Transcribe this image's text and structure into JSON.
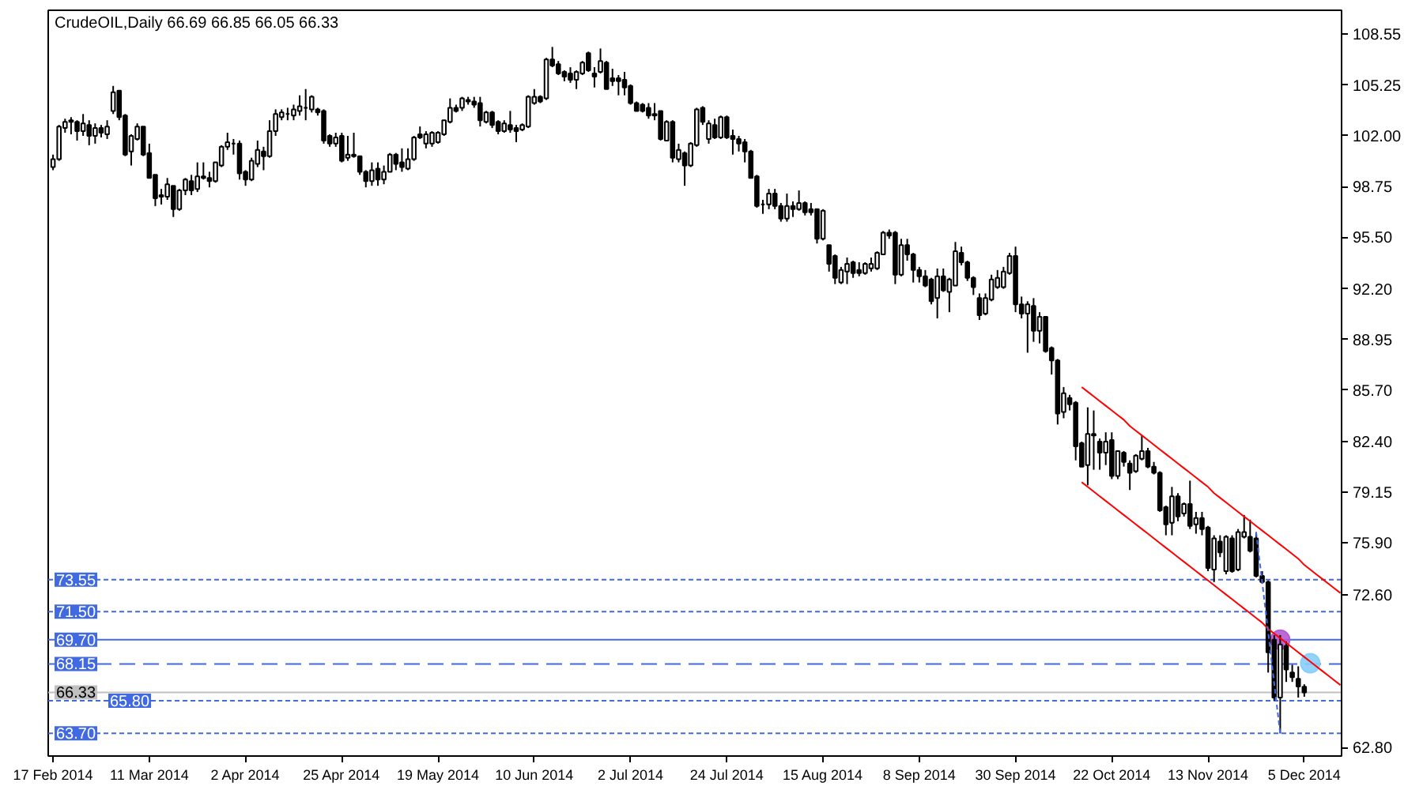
{
  "chart_data": {
    "type": "candlestick",
    "title": "CrudeOIL,Daily  66.69 66.85 66.05 66.33",
    "color": "#000000",
    "categories": [
      "17 Feb 2014",
      null,
      null,
      null,
      null,
      null,
      null,
      null,
      null,
      null,
      null,
      null,
      null,
      null,
      null,
      null,
      "11 Mar 2014",
      null,
      null,
      null,
      null,
      null,
      null,
      null,
      null,
      null,
      null,
      null,
      null,
      null,
      null,
      null,
      "2 Apr 2014",
      null,
      null,
      null,
      null,
      null,
      null,
      null,
      null,
      null,
      null,
      null,
      null,
      null,
      null,
      null,
      "25 Apr 2014",
      null,
      null,
      null,
      null,
      null,
      null,
      null,
      null,
      null,
      null,
      null,
      null,
      null,
      null,
      null,
      "19 May 2014",
      null,
      null,
      null,
      null,
      null,
      null,
      null,
      null,
      null,
      null,
      null,
      null,
      null,
      null,
      null,
      "10 Jun 2014",
      null,
      null,
      null,
      null,
      null,
      null,
      null,
      null,
      null,
      null,
      null,
      null,
      null,
      null,
      null,
      "2 Jul 2014",
      null,
      null,
      null,
      null,
      null,
      null,
      null,
      null,
      null,
      null,
      null,
      null,
      null,
      null,
      null,
      "24 Jul 2014",
      null,
      null,
      null,
      null,
      null,
      null,
      null,
      null,
      null,
      null,
      null,
      null,
      null,
      null,
      null,
      "15 Aug 2014",
      null,
      null,
      null,
      null,
      null,
      null,
      null,
      null,
      null,
      null,
      null,
      null,
      null,
      null,
      null,
      "8 Sep 2014",
      null,
      null,
      null,
      null,
      null,
      null,
      null,
      null,
      null,
      null,
      null,
      null,
      null,
      null,
      null,
      "30 Sep 2014",
      null,
      null,
      null,
      null,
      null,
      null,
      null,
      null,
      null,
      null,
      null,
      null,
      null,
      null,
      null,
      "22 Oct 2014",
      null,
      null,
      null,
      null,
      null,
      null,
      null,
      null,
      null,
      null,
      null,
      null,
      null,
      null,
      null,
      "13 Nov 2014",
      null,
      null,
      null,
      null,
      null,
      null,
      null,
      null,
      null,
      null,
      null,
      null,
      null,
      null,
      null,
      "5 Dec 2014",
      null,
      null,
      null,
      null,
      null,
      null
    ],
    "ohlc": [
      [
        100.0,
        100.8,
        99.8,
        100.5
      ],
      [
        100.5,
        102.7,
        100.4,
        102.6
      ],
      [
        102.5,
        103.1,
        102.2,
        102.9
      ],
      [
        102.9,
        103.2,
        102.1,
        103.0
      ],
      [
        102.9,
        103.0,
        101.7,
        102.3
      ],
      [
        102.3,
        103.4,
        102.0,
        102.8
      ],
      [
        102.7,
        103.0,
        101.4,
        102.0
      ],
      [
        102.0,
        102.8,
        101.5,
        102.5
      ],
      [
        102.5,
        102.7,
        101.9,
        102.2
      ],
      [
        102.1,
        103.0,
        101.8,
        102.6
      ],
      [
        103.6,
        105.2,
        103.4,
        104.8
      ],
      [
        104.9,
        104.9,
        103.0,
        103.2
      ],
      [
        103.3,
        103.4,
        100.7,
        100.8
      ],
      [
        101.0,
        102.1,
        100.1,
        102.0
      ],
      [
        101.8,
        102.8,
        101.7,
        102.6
      ],
      [
        102.6,
        102.6,
        100.7,
        100.8
      ],
      [
        100.9,
        101.5,
        99.3,
        99.3
      ],
      [
        99.5,
        99.5,
        97.5,
        98.0
      ],
      [
        98.2,
        98.6,
        97.6,
        98.1
      ],
      [
        98.1,
        99.3,
        97.9,
        98.9
      ],
      [
        98.8,
        98.8,
        96.8,
        97.3
      ],
      [
        97.3,
        98.6,
        97.2,
        98.5
      ],
      [
        98.5,
        99.3,
        98.2,
        99.2
      ],
      [
        99.1,
        99.5,
        98.2,
        98.5
      ],
      [
        98.6,
        100.3,
        98.4,
        99.4
      ],
      [
        99.4,
        100.3,
        99.2,
        99.3
      ],
      [
        99.3,
        99.7,
        98.7,
        99.1
      ],
      [
        99.1,
        100.3,
        99.0,
        100.3
      ],
      [
        100.1,
        101.4,
        100.0,
        101.3
      ],
      [
        101.3,
        102.2,
        101.1,
        101.6
      ],
      [
        101.5,
        101.8,
        100.8,
        101.5
      ],
      [
        101.5,
        101.7,
        99.2,
        99.6
      ],
      [
        99.7,
        99.8,
        98.8,
        99.2
      ],
      [
        99.2,
        100.6,
        99.1,
        100.4
      ],
      [
        100.2,
        101.7,
        100.0,
        101.1
      ],
      [
        101.0,
        101.3,
        99.8,
        100.7
      ],
      [
        100.7,
        103.0,
        100.6,
        102.3
      ],
      [
        102.3,
        103.7,
        102.0,
        103.4
      ],
      [
        103.2,
        103.7,
        103.0,
        103.5
      ],
      [
        103.4,
        103.8,
        103.0,
        103.4
      ],
      [
        103.3,
        104.0,
        103.0,
        103.7
      ],
      [
        103.6,
        104.6,
        103.3,
        103.9
      ],
      [
        103.8,
        105.0,
        103.0,
        103.8
      ],
      [
        103.7,
        104.6,
        103.5,
        104.5
      ],
      [
        103.7,
        103.8,
        103.3,
        103.5
      ],
      [
        103.6,
        103.7,
        101.5,
        101.7
      ],
      [
        102.0,
        102.1,
        101.3,
        101.5
      ],
      [
        101.5,
        102.2,
        101.3,
        101.9
      ],
      [
        102.0,
        102.2,
        100.3,
        100.4
      ],
      [
        100.6,
        102.0,
        100.4,
        100.8
      ],
      [
        100.8,
        102.2,
        100.6,
        100.7
      ],
      [
        100.7,
        100.7,
        99.5,
        99.7
      ],
      [
        99.7,
        99.8,
        98.7,
        99.1
      ],
      [
        99.1,
        100.3,
        98.8,
        99.8
      ],
      [
        99.9,
        100.3,
        98.8,
        99.2
      ],
      [
        99.2,
        100.1,
        98.9,
        99.7
      ],
      [
        99.7,
        100.9,
        99.7,
        100.8
      ],
      [
        100.8,
        100.9,
        99.8,
        100.2
      ],
      [
        100.3,
        101.2,
        99.7,
        100.0
      ],
      [
        99.9,
        101.2,
        99.8,
        100.5
      ],
      [
        100.5,
        102.0,
        100.4,
        101.9
      ],
      [
        102.1,
        102.6,
        101.8,
        101.9
      ],
      [
        101.5,
        102.3,
        101.2,
        102.1
      ],
      [
        101.5,
        102.3,
        101.3,
        102.2
      ],
      [
        101.6,
        102.3,
        101.5,
        102.2
      ],
      [
        102.1,
        103.0,
        102.0,
        103.0
      ],
      [
        102.9,
        104.4,
        102.8,
        103.8
      ],
      [
        103.8,
        104.0,
        103.5,
        103.6
      ],
      [
        103.8,
        104.5,
        103.6,
        104.4
      ],
      [
        104.3,
        104.5,
        104.0,
        104.2
      ],
      [
        104.2,
        104.5,
        103.8,
        104.0
      ],
      [
        104.1,
        104.5,
        102.6,
        103.0
      ],
      [
        102.9,
        103.6,
        102.8,
        103.5
      ],
      [
        103.5,
        103.6,
        102.5,
        102.7
      ],
      [
        102.9,
        103.0,
        102.1,
        102.3
      ],
      [
        102.3,
        103.0,
        102.2,
        102.8
      ],
      [
        102.7,
        103.6,
        102.2,
        102.4
      ],
      [
        102.5,
        102.7,
        101.6,
        102.3
      ],
      [
        102.4,
        102.8,
        102.3,
        102.7
      ],
      [
        102.6,
        104.6,
        102.5,
        104.5
      ],
      [
        104.1,
        105.0,
        104.0,
        104.5
      ],
      [
        104.5,
        104.6,
        104.1,
        104.2
      ],
      [
        104.4,
        107.0,
        104.3,
        106.9
      ],
      [
        106.9,
        107.7,
        106.4,
        106.5
      ],
      [
        106.6,
        106.8,
        105.9,
        106.0
      ],
      [
        106.1,
        106.2,
        105.5,
        105.8
      ],
      [
        106.0,
        106.4,
        105.4,
        105.6
      ],
      [
        105.6,
        106.2,
        105.0,
        106.1
      ],
      [
        106.0,
        106.8,
        105.9,
        106.7
      ],
      [
        107.3,
        107.4,
        106.1,
        106.2
      ],
      [
        106.0,
        106.4,
        105.1,
        105.8
      ],
      [
        106.1,
        107.6,
        106.0,
        106.8
      ],
      [
        106.7,
        106.8,
        105.0,
        105.0
      ],
      [
        105.7,
        106.3,
        105.2,
        105.5
      ],
      [
        105.7,
        105.9,
        104.6,
        105.5
      ],
      [
        105.6,
        106.1,
        104.6,
        105.1
      ],
      [
        105.2,
        105.3,
        104.0,
        104.1
      ],
      [
        104.1,
        104.2,
        103.6,
        103.6
      ],
      [
        104.0,
        104.1,
        103.5,
        103.6
      ],
      [
        103.8,
        104.1,
        103.1,
        103.3
      ],
      [
        103.4,
        104.1,
        103.0,
        103.3
      ],
      [
        103.6,
        103.6,
        101.7,
        101.8
      ],
      [
        101.7,
        103.0,
        101.7,
        102.9
      ],
      [
        102.9,
        103.0,
        100.3,
        100.6
      ],
      [
        100.5,
        101.5,
        100.3,
        101.1
      ],
      [
        100.9,
        101.0,
        98.8,
        100.1
      ],
      [
        100.1,
        101.6,
        100.0,
        101.5
      ],
      [
        101.4,
        103.8,
        101.3,
        103.7
      ],
      [
        103.8,
        103.9,
        102.7,
        102.9
      ],
      [
        101.8,
        103.0,
        101.5,
        102.8
      ],
      [
        102.7,
        103.1,
        101.8,
        101.9
      ],
      [
        101.9,
        103.3,
        101.8,
        103.2
      ],
      [
        103.2,
        103.3,
        101.8,
        101.9
      ],
      [
        102.0,
        102.4,
        100.8,
        101.8
      ],
      [
        101.8,
        102.0,
        101.0,
        101.5
      ],
      [
        101.6,
        101.8,
        100.3,
        101.0
      ],
      [
        101.0,
        101.1,
        99.3,
        99.3
      ],
      [
        99.4,
        99.5,
        97.4,
        97.5
      ],
      [
        97.6,
        97.9,
        97.0,
        97.6
      ],
      [
        97.6,
        98.6,
        97.3,
        98.3
      ],
      [
        98.3,
        98.6,
        97.3,
        97.5
      ],
      [
        97.5,
        97.7,
        96.5,
        96.7
      ],
      [
        96.7,
        98.3,
        96.5,
        97.5
      ],
      [
        97.5,
        97.8,
        96.8,
        97.3
      ],
      [
        97.3,
        98.5,
        97.2,
        97.7
      ],
      [
        97.7,
        97.8,
        96.9,
        97.1
      ],
      [
        97.3,
        97.7,
        96.9,
        97.1
      ],
      [
        97.3,
        97.3,
        95.1,
        95.4
      ],
      [
        95.4,
        97.3,
        95.3,
        97.2
      ],
      [
        95.0,
        95.0,
        93.3,
        93.8
      ],
      [
        94.3,
        94.4,
        92.5,
        92.9
      ],
      [
        92.6,
        93.6,
        92.5,
        93.4
      ],
      [
        93.3,
        94.2,
        92.5,
        93.8
      ],
      [
        93.9,
        94.0,
        92.9,
        93.2
      ],
      [
        93.4,
        93.9,
        93.0,
        93.2
      ],
      [
        93.2,
        93.9,
        93.1,
        93.8
      ],
      [
        93.5,
        94.2,
        93.3,
        93.8
      ],
      [
        93.5,
        94.6,
        93.4,
        94.5
      ],
      [
        94.4,
        95.9,
        94.4,
        95.8
      ],
      [
        95.8,
        96.0,
        95.4,
        95.6
      ],
      [
        95.8,
        95.9,
        92.5,
        93.1
      ],
      [
        93.1,
        95.4,
        93.0,
        95.0
      ],
      [
        95.0,
        95.4,
        94.0,
        94.4
      ],
      [
        94.4,
        94.5,
        92.6,
        93.4
      ],
      [
        93.4,
        93.6,
        92.6,
        93.0
      ],
      [
        93.0,
        93.4,
        92.3,
        92.4
      ],
      [
        92.8,
        92.9,
        91.2,
        91.4
      ],
      [
        91.6,
        93.5,
        90.3,
        93.0
      ],
      [
        93.0,
        93.5,
        92.0,
        92.1
      ],
      [
        92.0,
        92.9,
        90.7,
        92.8
      ],
      [
        92.4,
        95.2,
        92.4,
        94.6
      ],
      [
        94.5,
        94.9,
        93.7,
        93.9
      ],
      [
        93.9,
        94.0,
        92.7,
        92.9
      ],
      [
        92.9,
        93.0,
        91.8,
        92.3
      ],
      [
        91.6,
        91.9,
        90.2,
        90.5
      ],
      [
        90.6,
        91.9,
        90.5,
        91.6
      ],
      [
        91.5,
        93.1,
        91.4,
        92.8
      ],
      [
        92.3,
        93.4,
        92.2,
        92.9
      ],
      [
        92.3,
        93.6,
        92.2,
        93.3
      ],
      [
        93.2,
        94.5,
        93.1,
        94.3
      ],
      [
        94.3,
        94.9,
        90.7,
        91.2
      ],
      [
        91.2,
        91.7,
        90.3,
        90.6
      ],
      [
        90.6,
        91.4,
        88.1,
        91.2
      ],
      [
        91.1,
        91.6,
        88.8,
        89.5
      ],
      [
        89.5,
        90.7,
        88.7,
        90.4
      ],
      [
        90.4,
        90.4,
        88.1,
        88.2
      ],
      [
        88.4,
        88.5,
        86.7,
        87.6
      ],
      [
        87.6,
        87.7,
        83.5,
        84.2
      ],
      [
        84.3,
        85.9,
        83.9,
        85.5
      ],
      [
        85.2,
        85.4,
        84.4,
        84.8
      ],
      [
        84.9,
        85.0,
        81.2,
        82.1
      ],
      [
        82.3,
        82.4,
        80.8,
        80.8
      ],
      [
        80.9,
        84.6,
        79.6,
        82.9
      ],
      [
        82.9,
        84.4,
        80.6,
        82.8
      ],
      [
        82.4,
        82.6,
        80.6,
        81.7
      ],
      [
        81.7,
        83.0,
        80.9,
        82.4
      ],
      [
        82.5,
        83.0,
        80.0,
        80.2
      ],
      [
        80.2,
        81.8,
        80.0,
        81.8
      ],
      [
        81.7,
        81.8,
        80.8,
        81.1
      ],
      [
        81.0,
        81.2,
        79.3,
        80.4
      ],
      [
        80.5,
        81.6,
        80.4,
        81.5
      ],
      [
        81.3,
        82.8,
        81.2,
        81.8
      ],
      [
        81.8,
        82.0,
        80.7,
        80.8
      ],
      [
        80.8,
        81.1,
        80.3,
        80.4
      ],
      [
        80.4,
        80.5,
        77.9,
        78.0
      ],
      [
        78.2,
        78.3,
        76.4,
        77.1
      ],
      [
        77.2,
        79.5,
        76.4,
        78.9
      ],
      [
        78.9,
        79.1,
        77.3,
        77.6
      ],
      [
        77.8,
        78.5,
        77.6,
        78.4
      ],
      [
        78.4,
        79.9,
        76.8,
        77.0
      ],
      [
        77.1,
        77.9,
        76.5,
        77.5
      ],
      [
        77.5,
        77.9,
        76.4,
        76.8
      ],
      [
        76.9,
        77.0,
        74.1,
        74.3
      ],
      [
        74.2,
        76.4,
        73.4,
        76.2
      ],
      [
        76.0,
        76.4,
        75.0,
        75.3
      ],
      [
        74.1,
        76.4,
        73.9,
        76.3
      ],
      [
        76.2,
        76.4,
        74.0,
        74.1
      ],
      [
        74.2,
        76.8,
        74.1,
        76.6
      ],
      [
        76.3,
        77.7,
        76.2,
        76.6
      ],
      [
        76.3,
        77.4,
        75.3,
        75.4
      ],
      [
        76.2,
        76.6,
        73.7,
        73.8
      ],
      [
        73.8,
        74.1,
        73.3,
        73.4
      ],
      [
        73.4,
        73.5,
        67.6,
        68.9
      ],
      [
        69.7,
        70.0,
        65.8,
        66.0
      ],
      [
        66.0,
        70.0,
        63.7,
        69.4
      ],
      [
        69.3,
        69.6,
        67.0,
        67.8
      ],
      [
        67.6,
        68.1,
        67.0,
        67.3
      ],
      [
        67.2,
        68.0,
        66.0,
        66.7
      ],
      [
        66.69,
        66.85,
        66.05,
        66.33
      ],
      null,
      null,
      null,
      null,
      null,
      null
    ],
    "series": [
      {
        "type": "line",
        "color": "#ff0000",
        "line_style": "solid",
        "values": [
          null,
          null,
          null,
          null,
          null,
          null,
          null,
          null,
          null,
          null,
          null,
          null,
          null,
          null,
          null,
          null,
          null,
          null,
          null,
          null,
          null,
          null,
          null,
          null,
          null,
          null,
          null,
          null,
          null,
          null,
          null,
          null,
          null,
          null,
          null,
          null,
          null,
          null,
          null,
          null,
          null,
          null,
          null,
          null,
          null,
          null,
          null,
          null,
          null,
          null,
          null,
          null,
          null,
          null,
          null,
          null,
          null,
          null,
          null,
          null,
          null,
          null,
          null,
          null,
          null,
          null,
          null,
          null,
          null,
          null,
          null,
          null,
          null,
          null,
          null,
          null,
          null,
          null,
          null,
          null,
          null,
          null,
          null,
          null,
          null,
          null,
          null,
          null,
          null,
          null,
          null,
          null,
          null,
          null,
          null,
          null,
          null,
          null,
          null,
          null,
          null,
          null,
          null,
          null,
          null,
          null,
          null,
          null,
          null,
          null,
          null,
          null,
          null,
          null,
          null,
          null,
          null,
          null,
          null,
          null,
          null,
          null,
          null,
          null,
          null,
          null,
          null,
          null,
          null,
          null,
          null,
          null,
          null,
          null,
          null,
          null,
          null,
          null,
          null,
          null,
          null,
          null,
          null,
          null,
          null,
          null,
          null,
          null,
          null,
          null,
          null,
          null,
          null,
          null,
          null,
          null,
          null,
          null,
          null,
          null,
          null,
          null,
          null,
          null,
          null,
          null,
          null,
          null,
          null,
          null,
          null,
          85.9,
          85.6,
          85.3,
          85.0,
          84.7,
          84.4,
          84.1,
          83.8,
          83.4,
          83.1,
          82.8,
          82.5,
          82.2,
          81.9,
          81.6,
          81.3,
          81.0,
          80.7,
          80.4,
          80.1,
          79.8,
          79.5,
          79.1,
          78.8,
          78.5,
          78.2,
          77.9,
          77.6,
          77.3,
          77.0,
          76.7,
          76.4,
          76.1,
          75.8,
          75.5,
          75.2,
          74.9,
          74.5,
          74.2,
          73.9,
          73.6,
          73.3,
          73.0,
          72.7
        ]
      },
      {
        "type": "line",
        "color": "#ff0000",
        "line_style": "solid",
        "values": [
          null,
          null,
          null,
          null,
          null,
          null,
          null,
          null,
          null,
          null,
          null,
          null,
          null,
          null,
          null,
          null,
          null,
          null,
          null,
          null,
          null,
          null,
          null,
          null,
          null,
          null,
          null,
          null,
          null,
          null,
          null,
          null,
          null,
          null,
          null,
          null,
          null,
          null,
          null,
          null,
          null,
          null,
          null,
          null,
          null,
          null,
          null,
          null,
          null,
          null,
          null,
          null,
          null,
          null,
          null,
          null,
          null,
          null,
          null,
          null,
          null,
          null,
          null,
          null,
          null,
          null,
          null,
          null,
          null,
          null,
          null,
          null,
          null,
          null,
          null,
          null,
          null,
          null,
          null,
          null,
          null,
          null,
          null,
          null,
          null,
          null,
          null,
          null,
          null,
          null,
          null,
          null,
          null,
          null,
          null,
          null,
          null,
          null,
          null,
          null,
          null,
          null,
          null,
          null,
          null,
          null,
          null,
          null,
          null,
          null,
          null,
          null,
          null,
          null,
          null,
          null,
          null,
          null,
          null,
          null,
          null,
          null,
          null,
          null,
          null,
          null,
          null,
          null,
          null,
          null,
          null,
          null,
          null,
          null,
          null,
          null,
          null,
          null,
          null,
          null,
          null,
          null,
          null,
          null,
          null,
          null,
          null,
          null,
          null,
          null,
          null,
          null,
          null,
          null,
          null,
          null,
          null,
          null,
          null,
          null,
          null,
          null,
          null,
          null,
          null,
          null,
          null,
          null,
          null,
          null,
          null,
          79.8,
          79.5,
          79.2,
          78.9,
          78.6,
          78.3,
          78.0,
          77.7,
          77.4,
          77.1,
          76.8,
          76.5,
          76.2,
          75.9,
          75.6,
          75.3,
          75.0,
          74.7,
          74.4,
          74.1,
          73.8,
          73.5,
          73.2,
          72.9,
          72.6,
          72.3,
          72.0,
          71.7,
          71.4,
          71.1,
          70.8,
          70.4,
          70.1,
          69.8,
          69.5,
          69.2,
          68.9,
          68.6,
          68.3,
          68.0,
          67.7,
          67.4,
          67.1,
          66.8
        ]
      },
      {
        "type": "line",
        "color": "#4169e1",
        "line_style": "dotted",
        "values": [
          null,
          null,
          null,
          null,
          null,
          null,
          null,
          null,
          null,
          null,
          null,
          null,
          null,
          null,
          null,
          null,
          null,
          null,
          null,
          null,
          null,
          null,
          null,
          null,
          null,
          null,
          null,
          null,
          null,
          null,
          null,
          null,
          null,
          null,
          null,
          null,
          null,
          null,
          null,
          null,
          null,
          null,
          null,
          null,
          null,
          null,
          null,
          null,
          null,
          null,
          null,
          null,
          null,
          null,
          null,
          null,
          null,
          null,
          null,
          null,
          null,
          null,
          null,
          null,
          null,
          null,
          null,
          null,
          null,
          null,
          null,
          null,
          null,
          null,
          null,
          null,
          null,
          null,
          null,
          null,
          null,
          null,
          null,
          null,
          null,
          null,
          null,
          null,
          null,
          null,
          null,
          null,
          null,
          null,
          null,
          null,
          null,
          null,
          null,
          null,
          null,
          null,
          null,
          null,
          null,
          null,
          null,
          null,
          null,
          null,
          null,
          null,
          null,
          null,
          null,
          null,
          null,
          null,
          null,
          null,
          null,
          null,
          null,
          null,
          null,
          null,
          null,
          null,
          null,
          null,
          null,
          null,
          null,
          null,
          null,
          null,
          null,
          null,
          null,
          null,
          null,
          null,
          null,
          null,
          null,
          null,
          null,
          null,
          null,
          null,
          null,
          null,
          null,
          null,
          null,
          null,
          null,
          null,
          null,
          null,
          null,
          null,
          null,
          null,
          null,
          null,
          null,
          null,
          null,
          null,
          null,
          null,
          null,
          null,
          null,
          null,
          null,
          null,
          null,
          null,
          null,
          null,
          null,
          null,
          null,
          null,
          null,
          null,
          null,
          null,
          null,
          null,
          null,
          null,
          null,
          null,
          null,
          null,
          null,
          null,
          76.6,
          73.4,
          70.2,
          66.9,
          63.7,
          null,
          null,
          null,
          null,
          null,
          null,
          null,
          null,
          null,
          null
        ]
      },
      {
        "type": "scatter",
        "color": "#b45ad2",
        "marker": "circle",
        "values": [
          null,
          null,
          null,
          null,
          null,
          null,
          null,
          null,
          null,
          null,
          null,
          null,
          null,
          null,
          null,
          null,
          null,
          null,
          null,
          null,
          null,
          null,
          null,
          null,
          null,
          null,
          null,
          null,
          null,
          null,
          null,
          null,
          null,
          null,
          null,
          null,
          null,
          null,
          null,
          null,
          null,
          null,
          null,
          null,
          null,
          null,
          null,
          null,
          null,
          null,
          null,
          null,
          null,
          null,
          null,
          null,
          null,
          null,
          null,
          null,
          null,
          null,
          null,
          null,
          null,
          null,
          null,
          null,
          null,
          null,
          null,
          null,
          null,
          null,
          null,
          null,
          null,
          null,
          null,
          null,
          null,
          null,
          null,
          null,
          null,
          null,
          null,
          null,
          null,
          null,
          null,
          null,
          null,
          null,
          null,
          null,
          null,
          null,
          null,
          null,
          null,
          null,
          null,
          null,
          null,
          null,
          null,
          null,
          null,
          null,
          null,
          null,
          null,
          null,
          null,
          null,
          null,
          null,
          null,
          null,
          null,
          null,
          null,
          null,
          null,
          null,
          null,
          null,
          null,
          null,
          null,
          null,
          null,
          null,
          null,
          null,
          null,
          null,
          null,
          null,
          null,
          null,
          null,
          null,
          null,
          null,
          null,
          null,
          null,
          null,
          null,
          null,
          null,
          null,
          null,
          null,
          null,
          null,
          null,
          null,
          null,
          null,
          null,
          null,
          null,
          null,
          null,
          null,
          null,
          null,
          null,
          null,
          null,
          null,
          null,
          null,
          null,
          null,
          null,
          null,
          null,
          null,
          null,
          null,
          null,
          null,
          null,
          null,
          null,
          null,
          null,
          null,
          null,
          null,
          null,
          null,
          null,
          null,
          null,
          null,
          null,
          null,
          null,
          null,
          69.7,
          null,
          null,
          null,
          null,
          null,
          null,
          null,
          null,
          null,
          null
        ]
      },
      {
        "type": "scatter",
        "color": "#87cefa",
        "marker": "circle",
        "values": [
          null,
          null,
          null,
          null,
          null,
          null,
          null,
          null,
          null,
          null,
          null,
          null,
          null,
          null,
          null,
          null,
          null,
          null,
          null,
          null,
          null,
          null,
          null,
          null,
          null,
          null,
          null,
          null,
          null,
          null,
          null,
          null,
          null,
          null,
          null,
          null,
          null,
          null,
          null,
          null,
          null,
          null,
          null,
          null,
          null,
          null,
          null,
          null,
          null,
          null,
          null,
          null,
          null,
          null,
          null,
          null,
          null,
          null,
          null,
          null,
          null,
          null,
          null,
          null,
          null,
          null,
          null,
          null,
          null,
          null,
          null,
          null,
          null,
          null,
          null,
          null,
          null,
          null,
          null,
          null,
          null,
          null,
          null,
          null,
          null,
          null,
          null,
          null,
          null,
          null,
          null,
          null,
          null,
          null,
          null,
          null,
          null,
          null,
          null,
          null,
          null,
          null,
          null,
          null,
          null,
          null,
          null,
          null,
          null,
          null,
          null,
          null,
          null,
          null,
          null,
          null,
          null,
          null,
          null,
          null,
          null,
          null,
          null,
          null,
          null,
          null,
          null,
          null,
          null,
          null,
          null,
          null,
          null,
          null,
          null,
          null,
          null,
          null,
          null,
          null,
          null,
          null,
          null,
          null,
          null,
          null,
          null,
          null,
          null,
          null,
          null,
          null,
          null,
          null,
          null,
          null,
          null,
          null,
          null,
          null,
          null,
          null,
          null,
          null,
          null,
          null,
          null,
          null,
          null,
          null,
          null,
          null,
          null,
          null,
          null,
          null,
          null,
          null,
          null,
          null,
          null,
          null,
          null,
          null,
          null,
          null,
          null,
          null,
          null,
          null,
          null,
          null,
          null,
          null,
          null,
          null,
          null,
          null,
          null,
          null,
          null,
          null,
          null,
          null,
          null,
          null,
          null,
          null,
          null,
          68.2,
          null,
          null,
          null,
          null,
          null
        ]
      }
    ],
    "ref_lines": [
      {
        "axis": "y",
        "value": 73.55,
        "label": "73.55",
        "color": "#4169e1",
        "line_style": "dotted"
      },
      {
        "axis": "y",
        "value": 71.5,
        "label": "71.50",
        "color": "#4169e1",
        "line_style": "dotted"
      },
      {
        "axis": "y",
        "value": 69.7,
        "label": "69.70",
        "color": "#4169e1",
        "line_style": "solid"
      },
      {
        "axis": "y",
        "value": 68.15,
        "label": "68.15",
        "color": "#4169e1",
        "line_style": "dashed"
      },
      {
        "axis": "y",
        "value": 66.33,
        "label": "66.33",
        "color": "#c0c0c0",
        "line_style": "solid"
      },
      {
        "axis": "y",
        "value": 65.8,
        "label": "65.80",
        "color": "#4169e1",
        "line_style": "dotted"
      },
      {
        "axis": "y",
        "value": 63.7,
        "label": "63.70",
        "color": "#4169e1",
        "line_style": "dotted"
      }
    ],
    "ylim": [
      62.25,
      110.05
    ],
    "yticks": [
      108.55,
      105.25,
      {
        "value": 102,
        "label": "102.00"
      },
      98.75,
      {
        "value": 95.5,
        "label": "95.50"
      },
      {
        "value": 92.2,
        "label": "92.20"
      },
      88.95,
      {
        "value": 85.7,
        "label": "85.70"
      },
      {
        "value": 82.4,
        "label": "82.40"
      },
      79.15,
      {
        "value": 75.9,
        "label": "75.90"
      },
      {
        "value": 72.6,
        "label": "72.60"
      },
      {
        "value": 62.8,
        "label": "62.80"
      }
    ]
  }
}
